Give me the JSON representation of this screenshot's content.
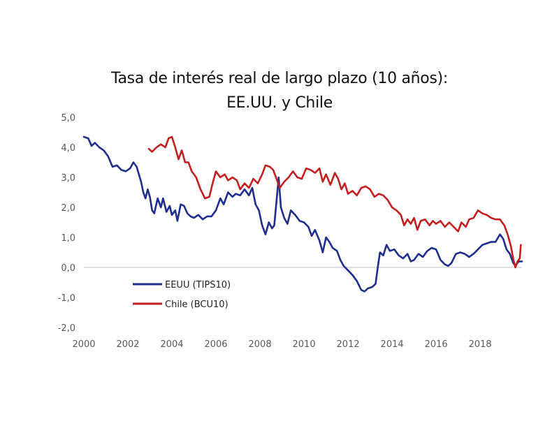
{
  "chart_data": {
    "type": "line",
    "title_line1": "Tasa de interés real de largo plazo (10 años):",
    "title_line2": "EE.UU. y Chile",
    "xlabel": "",
    "ylabel": "",
    "xlim": [
      2000,
      2019.9
    ],
    "ylim": [
      -2.0,
      5.0
    ],
    "x_ticks": [
      {
        "v": 2000,
        "label": "2000"
      },
      {
        "v": 2002,
        "label": "2002"
      },
      {
        "v": 2004,
        "label": "2004"
      },
      {
        "v": 2006,
        "label": "2006"
      },
      {
        "v": 2008,
        "label": "2008"
      },
      {
        "v": 2010,
        "label": "2010"
      },
      {
        "v": 2012,
        "label": "2012"
      },
      {
        "v": 2014,
        "label": "2014"
      },
      {
        "v": 2016,
        "label": "2016"
      },
      {
        "v": 2018,
        "label": "2018"
      }
    ],
    "y_ticks": [
      {
        "v": 5.0,
        "label": "5,0"
      },
      {
        "v": 4.0,
        "label": "4,0"
      },
      {
        "v": 3.0,
        "label": "3,0"
      },
      {
        "v": 2.0,
        "label": "2,0"
      },
      {
        "v": 1.0,
        "label": "1,0"
      },
      {
        "v": 0.0,
        "label": "0,0"
      },
      {
        "v": -1.0,
        "label": "-1,0"
      },
      {
        "v": -2.0,
        "label": "-2,0"
      }
    ],
    "series": [
      {
        "name": "EEUU (TIPS10)",
        "color": "#1f2d8f",
        "points": [
          [
            2000.0,
            4.35
          ],
          [
            2000.2,
            4.3
          ],
          [
            2000.35,
            4.05
          ],
          [
            2000.5,
            4.15
          ],
          [
            2000.7,
            4.0
          ],
          [
            2000.9,
            3.9
          ],
          [
            2001.1,
            3.7
          ],
          [
            2001.3,
            3.35
          ],
          [
            2001.5,
            3.4
          ],
          [
            2001.7,
            3.25
          ],
          [
            2001.9,
            3.2
          ],
          [
            2002.1,
            3.3
          ],
          [
            2002.25,
            3.5
          ],
          [
            2002.4,
            3.35
          ],
          [
            2002.5,
            3.1
          ],
          [
            2002.6,
            2.85
          ],
          [
            2002.7,
            2.5
          ],
          [
            2002.8,
            2.3
          ],
          [
            2002.9,
            2.6
          ],
          [
            2003.0,
            2.35
          ],
          [
            2003.1,
            1.9
          ],
          [
            2003.2,
            1.8
          ],
          [
            2003.35,
            2.3
          ],
          [
            2003.5,
            2.0
          ],
          [
            2003.6,
            2.3
          ],
          [
            2003.75,
            1.85
          ],
          [
            2003.9,
            2.05
          ],
          [
            2004.0,
            1.75
          ],
          [
            2004.15,
            1.9
          ],
          [
            2004.25,
            1.55
          ],
          [
            2004.4,
            2.1
          ],
          [
            2004.55,
            2.05
          ],
          [
            2004.7,
            1.8
          ],
          [
            2004.85,
            1.7
          ],
          [
            2005.0,
            1.65
          ],
          [
            2005.2,
            1.75
          ],
          [
            2005.4,
            1.6
          ],
          [
            2005.6,
            1.7
          ],
          [
            2005.8,
            1.7
          ],
          [
            2006.0,
            1.9
          ],
          [
            2006.2,
            2.3
          ],
          [
            2006.35,
            2.1
          ],
          [
            2006.55,
            2.5
          ],
          [
            2006.75,
            2.35
          ],
          [
            2006.9,
            2.45
          ],
          [
            2007.1,
            2.4
          ],
          [
            2007.3,
            2.6
          ],
          [
            2007.5,
            2.4
          ],
          [
            2007.65,
            2.65
          ],
          [
            2007.8,
            2.1
          ],
          [
            2007.95,
            1.9
          ],
          [
            2008.1,
            1.4
          ],
          [
            2008.25,
            1.1
          ],
          [
            2008.4,
            1.5
          ],
          [
            2008.55,
            1.3
          ],
          [
            2008.65,
            1.4
          ],
          [
            2008.75,
            2.2
          ],
          [
            2008.85,
            3.0
          ],
          [
            2008.95,
            2.0
          ],
          [
            2009.1,
            1.65
          ],
          [
            2009.25,
            1.45
          ],
          [
            2009.4,
            1.9
          ],
          [
            2009.6,
            1.75
          ],
          [
            2009.8,
            1.55
          ],
          [
            2010.0,
            1.5
          ],
          [
            2010.2,
            1.35
          ],
          [
            2010.35,
            1.05
          ],
          [
            2010.5,
            1.25
          ],
          [
            2010.7,
            0.9
          ],
          [
            2010.85,
            0.5
          ],
          [
            2011.0,
            1.0
          ],
          [
            2011.15,
            0.85
          ],
          [
            2011.3,
            0.65
          ],
          [
            2011.5,
            0.55
          ],
          [
            2011.65,
            0.25
          ],
          [
            2011.8,
            0.05
          ],
          [
            2012.0,
            -0.1
          ],
          [
            2012.2,
            -0.25
          ],
          [
            2012.4,
            -0.45
          ],
          [
            2012.6,
            -0.75
          ],
          [
            2012.75,
            -0.8
          ],
          [
            2012.9,
            -0.7
          ],
          [
            2013.1,
            -0.65
          ],
          [
            2013.25,
            -0.55
          ],
          [
            2013.35,
            0.0
          ],
          [
            2013.45,
            0.5
          ],
          [
            2013.6,
            0.4
          ],
          [
            2013.75,
            0.75
          ],
          [
            2013.9,
            0.55
          ],
          [
            2014.1,
            0.6
          ],
          [
            2014.3,
            0.4
          ],
          [
            2014.5,
            0.3
          ],
          [
            2014.7,
            0.45
          ],
          [
            2014.85,
            0.2
          ],
          [
            2015.0,
            0.25
          ],
          [
            2015.2,
            0.45
          ],
          [
            2015.4,
            0.35
          ],
          [
            2015.6,
            0.55
          ],
          [
            2015.8,
            0.65
          ],
          [
            2016.0,
            0.6
          ],
          [
            2016.2,
            0.25
          ],
          [
            2016.4,
            0.1
          ],
          [
            2016.55,
            0.05
          ],
          [
            2016.7,
            0.15
          ],
          [
            2016.9,
            0.45
          ],
          [
            2017.1,
            0.5
          ],
          [
            2017.3,
            0.45
          ],
          [
            2017.5,
            0.35
          ],
          [
            2017.7,
            0.45
          ],
          [
            2017.9,
            0.6
          ],
          [
            2018.1,
            0.75
          ],
          [
            2018.3,
            0.8
          ],
          [
            2018.5,
            0.85
          ],
          [
            2018.7,
            0.85
          ],
          [
            2018.9,
            1.1
          ],
          [
            2019.05,
            0.95
          ],
          [
            2019.2,
            0.6
          ],
          [
            2019.35,
            0.45
          ],
          [
            2019.5,
            0.15
          ],
          [
            2019.6,
            0.05
          ],
          [
            2019.75,
            0.2
          ],
          [
            2019.9,
            0.2
          ]
        ]
      },
      {
        "name": "Chile (BCU10)",
        "color": "#c41e1e",
        "points": [
          [
            2002.95,
            3.95
          ],
          [
            2003.1,
            3.85
          ],
          [
            2003.3,
            4.0
          ],
          [
            2003.5,
            4.1
          ],
          [
            2003.7,
            4.0
          ],
          [
            2003.85,
            4.3
          ],
          [
            2004.0,
            4.35
          ],
          [
            2004.15,
            4.0
          ],
          [
            2004.3,
            3.6
          ],
          [
            2004.45,
            3.9
          ],
          [
            2004.6,
            3.5
          ],
          [
            2004.75,
            3.5
          ],
          [
            2004.9,
            3.2
          ],
          [
            2005.1,
            3.0
          ],
          [
            2005.3,
            2.6
          ],
          [
            2005.5,
            2.3
          ],
          [
            2005.7,
            2.35
          ],
          [
            2005.85,
            2.8
          ],
          [
            2006.0,
            3.2
          ],
          [
            2006.2,
            3.0
          ],
          [
            2006.4,
            3.1
          ],
          [
            2006.55,
            2.9
          ],
          [
            2006.75,
            3.0
          ],
          [
            2006.95,
            2.9
          ],
          [
            2007.1,
            2.6
          ],
          [
            2007.3,
            2.8
          ],
          [
            2007.5,
            2.65
          ],
          [
            2007.7,
            2.95
          ],
          [
            2007.9,
            2.8
          ],
          [
            2008.1,
            3.1
          ],
          [
            2008.25,
            3.4
          ],
          [
            2008.45,
            3.35
          ],
          [
            2008.6,
            3.25
          ],
          [
            2008.75,
            2.95
          ],
          [
            2008.9,
            2.65
          ],
          [
            2009.1,
            2.85
          ],
          [
            2009.3,
            3.0
          ],
          [
            2009.5,
            3.2
          ],
          [
            2009.7,
            3.0
          ],
          [
            2009.9,
            2.95
          ],
          [
            2010.1,
            3.3
          ],
          [
            2010.3,
            3.25
          ],
          [
            2010.5,
            3.15
          ],
          [
            2010.7,
            3.3
          ],
          [
            2010.85,
            2.85
          ],
          [
            2011.0,
            3.1
          ],
          [
            2011.2,
            2.75
          ],
          [
            2011.4,
            3.15
          ],
          [
            2011.55,
            2.95
          ],
          [
            2011.7,
            2.6
          ],
          [
            2011.85,
            2.8
          ],
          [
            2012.0,
            2.45
          ],
          [
            2012.2,
            2.55
          ],
          [
            2012.4,
            2.4
          ],
          [
            2012.6,
            2.65
          ],
          [
            2012.8,
            2.7
          ],
          [
            2013.0,
            2.6
          ],
          [
            2013.2,
            2.35
          ],
          [
            2013.4,
            2.45
          ],
          [
            2013.6,
            2.4
          ],
          [
            2013.8,
            2.25
          ],
          [
            2014.0,
            2.0
          ],
          [
            2014.2,
            1.9
          ],
          [
            2014.4,
            1.75
          ],
          [
            2014.55,
            1.4
          ],
          [
            2014.7,
            1.6
          ],
          [
            2014.85,
            1.45
          ],
          [
            2015.0,
            1.65
          ],
          [
            2015.15,
            1.25
          ],
          [
            2015.3,
            1.55
          ],
          [
            2015.5,
            1.6
          ],
          [
            2015.7,
            1.4
          ],
          [
            2015.85,
            1.55
          ],
          [
            2016.0,
            1.45
          ],
          [
            2016.2,
            1.55
          ],
          [
            2016.4,
            1.35
          ],
          [
            2016.6,
            1.5
          ],
          [
            2016.8,
            1.35
          ],
          [
            2017.0,
            1.2
          ],
          [
            2017.15,
            1.5
          ],
          [
            2017.35,
            1.35
          ],
          [
            2017.5,
            1.6
          ],
          [
            2017.7,
            1.65
          ],
          [
            2017.9,
            1.9
          ],
          [
            2018.1,
            1.8
          ],
          [
            2018.3,
            1.75
          ],
          [
            2018.5,
            1.65
          ],
          [
            2018.7,
            1.6
          ],
          [
            2018.9,
            1.6
          ],
          [
            2019.1,
            1.4
          ],
          [
            2019.25,
            1.1
          ],
          [
            2019.4,
            0.7
          ],
          [
            2019.5,
            0.3
          ],
          [
            2019.6,
            0.0
          ],
          [
            2019.7,
            0.2
          ],
          [
            2019.8,
            0.3
          ],
          [
            2019.85,
            0.75
          ]
        ]
      }
    ]
  }
}
